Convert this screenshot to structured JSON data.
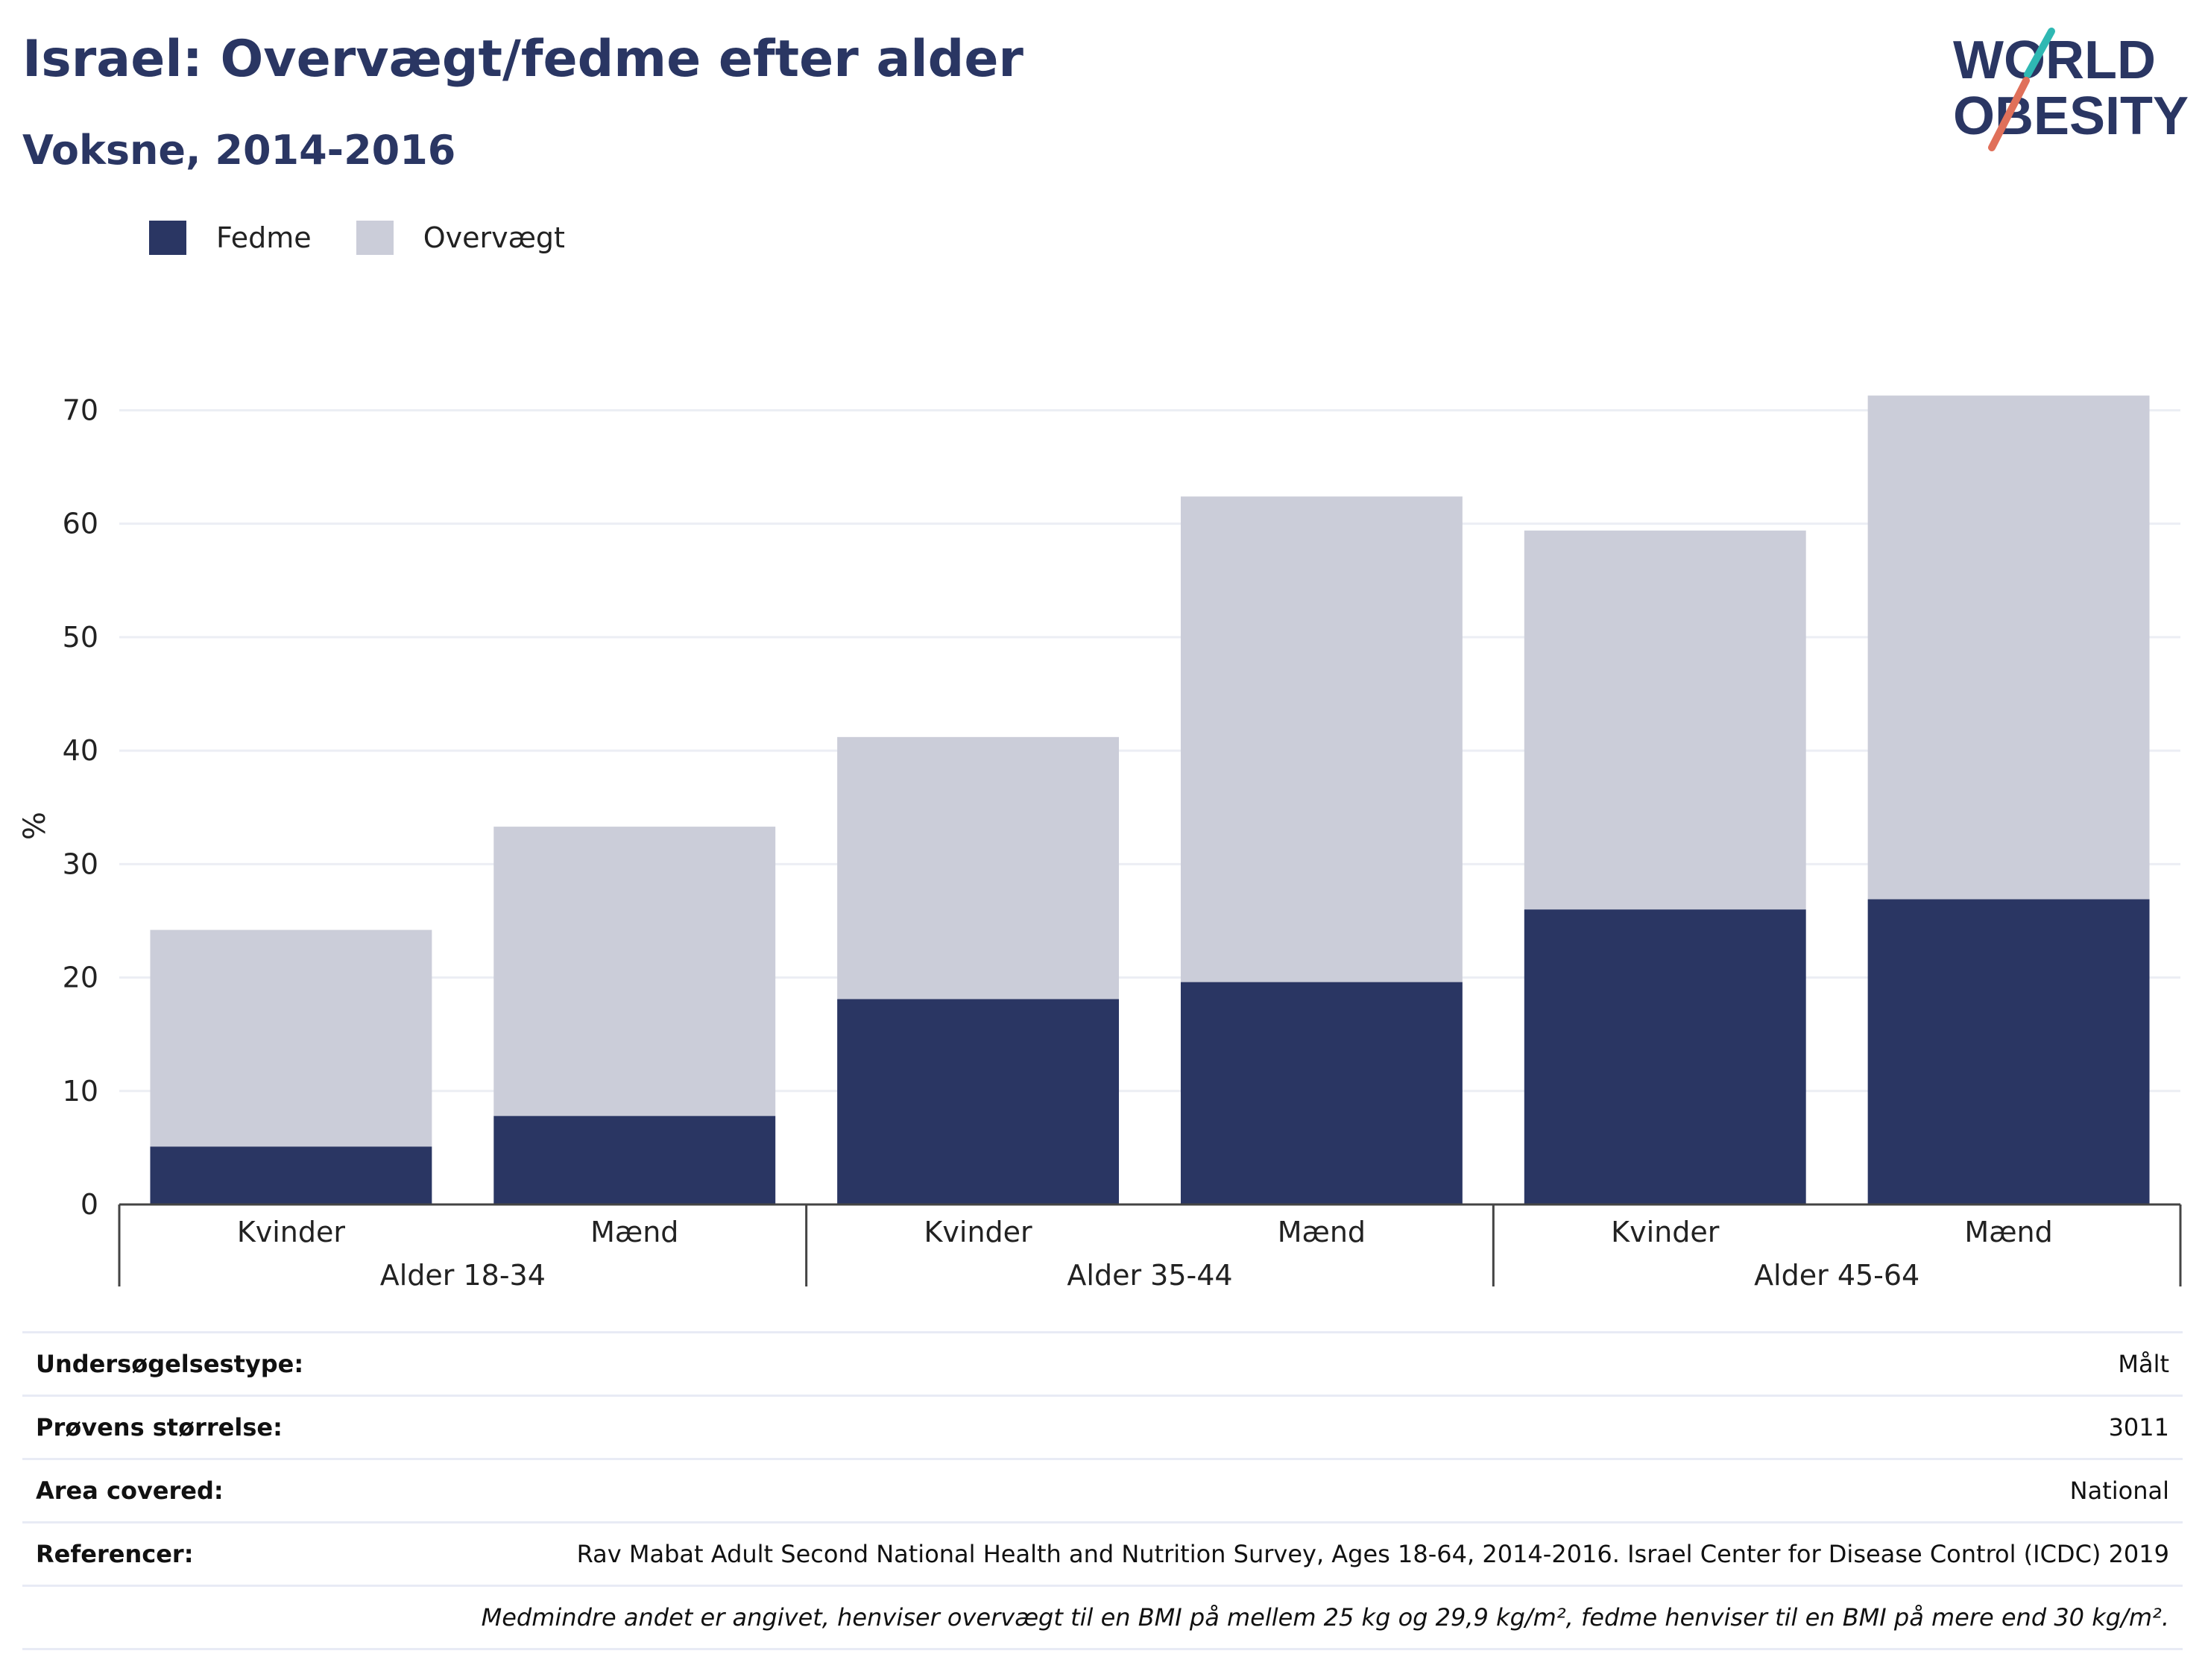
{
  "header": {
    "title": "Israel: Overvægt/fedme efter alder",
    "subtitle": "Voksne, 2014-2016"
  },
  "logo": {
    "line1": "WORLD",
    "line2": "OBESITY"
  },
  "legend": {
    "fedme": "Fedme",
    "overvaegt": "Overvægt"
  },
  "colors": {
    "fedme": "#2a3663",
    "overvaegt": "#cbcdd9",
    "accent_teal": "#2fb8b3",
    "accent_coral": "#e0705a"
  },
  "chart_data": {
    "type": "bar",
    "stacked": true,
    "ylabel": "%",
    "ylim": [
      0,
      72
    ],
    "yticks": [
      0,
      10,
      20,
      30,
      40,
      50,
      60,
      70
    ],
    "grid": true,
    "legend_position": "top-left",
    "groups": [
      "Alder 18-34",
      "Alder 35-44",
      "Alder 45-64"
    ],
    "categories": [
      "Kvinder",
      "Mænd",
      "Kvinder",
      "Mænd",
      "Kvinder",
      "Mænd"
    ],
    "series": [
      {
        "name": "Fedme",
        "values": [
          5.1,
          7.8,
          18.1,
          19.6,
          26.0,
          26.9
        ]
      },
      {
        "name": "Overvægt",
        "values": [
          19.1,
          25.5,
          23.1,
          42.8,
          33.4,
          44.4
        ]
      }
    ]
  },
  "info": {
    "survey_type_label": "Undersøgelsestype:",
    "survey_type_value": "Målt",
    "sample_size_label": "Prøvens størrelse:",
    "sample_size_value": "3011",
    "area_label": "Area covered:",
    "area_value": "National",
    "references_label": "Referencer:",
    "references_value": "Rav Mabat Adult Second National Health and Nutrition Survey, Ages 18-64, 2014-2016. Israel Center for Disease Control (ICDC) 2019",
    "note": "Medmindre andet er angivet, henviser overvægt til en BMI på mellem 25 kg og 29,9 kg/m², fedme henviser til en BMI på mere end 30 kg/m²."
  }
}
